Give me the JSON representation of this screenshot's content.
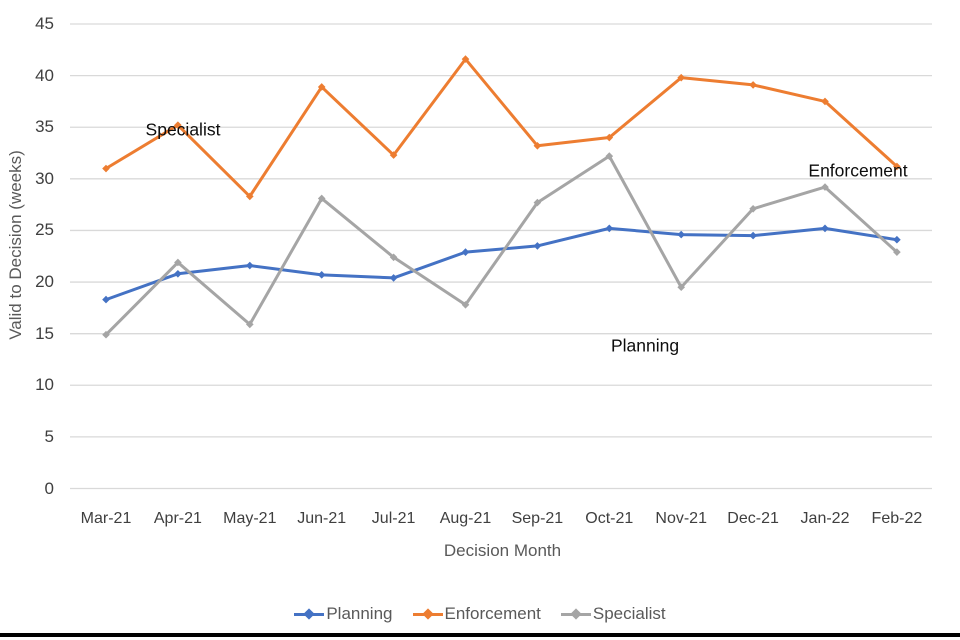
{
  "chart_data": {
    "type": "line",
    "title": "",
    "xlabel": "Decision Month",
    "ylabel": "Valid to Decision (weeks)",
    "categories": [
      "Mar-21",
      "Apr-21",
      "May-21",
      "Jun-21",
      "Jul-21",
      "Aug-21",
      "Sep-21",
      "Oct-21",
      "Nov-21",
      "Dec-21",
      "Jan-22",
      "Feb-22"
    ],
    "y_ticks": [
      0,
      5,
      10,
      15,
      20,
      25,
      30,
      35,
      40,
      45
    ],
    "ylim": [
      0,
      45
    ],
    "grid": "horizontal",
    "gridline_color": "#d9d9d9",
    "legend_position": "bottom",
    "series": [
      {
        "name": "Planning",
        "color": "#4472C4",
        "values": [
          18.3,
          20.8,
          21.6,
          20.7,
          20.4,
          22.9,
          23.5,
          25.2,
          24.6,
          24.5,
          25.2,
          24.1
        ]
      },
      {
        "name": "Enforcement",
        "color": "#ED7D31",
        "values": [
          31.0,
          35.2,
          28.3,
          38.9,
          32.3,
          41.6,
          33.2,
          34.0,
          39.8,
          39.1,
          37.5,
          31.2
        ]
      },
      {
        "name": "Specialist",
        "color": "#A5A5A5",
        "values": [
          14.9,
          21.9,
          15.9,
          28.1,
          22.4,
          17.8,
          27.7,
          32.2,
          19.5,
          27.1,
          29.2,
          22.9
        ]
      }
    ],
    "annotations": [
      {
        "text": "Specialist",
        "x": 183,
        "y": 130
      },
      {
        "text": "Enforcement",
        "x": 858,
        "y": 171
      },
      {
        "text": "Planning",
        "x": 645,
        "y": 346
      }
    ]
  },
  "legend": {
    "items": [
      {
        "label": "Planning",
        "color": "#4472C4"
      },
      {
        "label": "Enforcement",
        "color": "#ED7D31"
      },
      {
        "label": "Specialist",
        "color": "#A5A5A5"
      }
    ]
  }
}
